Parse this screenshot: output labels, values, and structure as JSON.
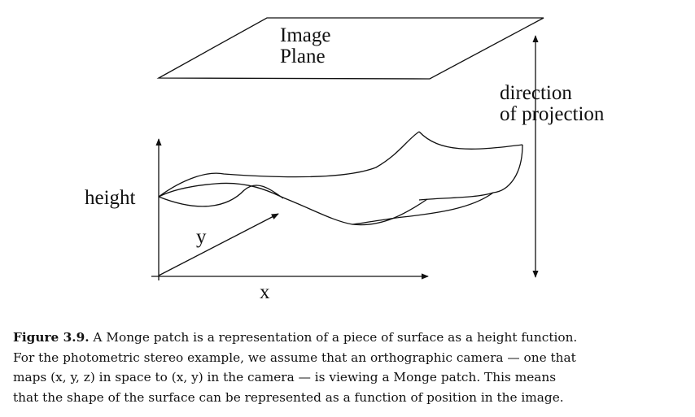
{
  "figure": {
    "labels": {
      "image_plane": [
        "Image",
        "Plane"
      ],
      "direction": [
        "direction",
        "of projection"
      ],
      "height": "height",
      "y_axis": "y",
      "x_axis": "x"
    },
    "stroke_color": "#111111"
  },
  "caption": {
    "figure_number": "Figure 3.9.",
    "lines": [
      " A Monge patch is a representation of a piece of surface as a height function.",
      "For the photometric stereo example, we assume that an orthographic camera — one that",
      "maps (x, y, z) in space to (x, y) in the camera — is viewing a Monge patch.  This means",
      "that the shape of the surface can be represented as a function of position in the image."
    ]
  }
}
